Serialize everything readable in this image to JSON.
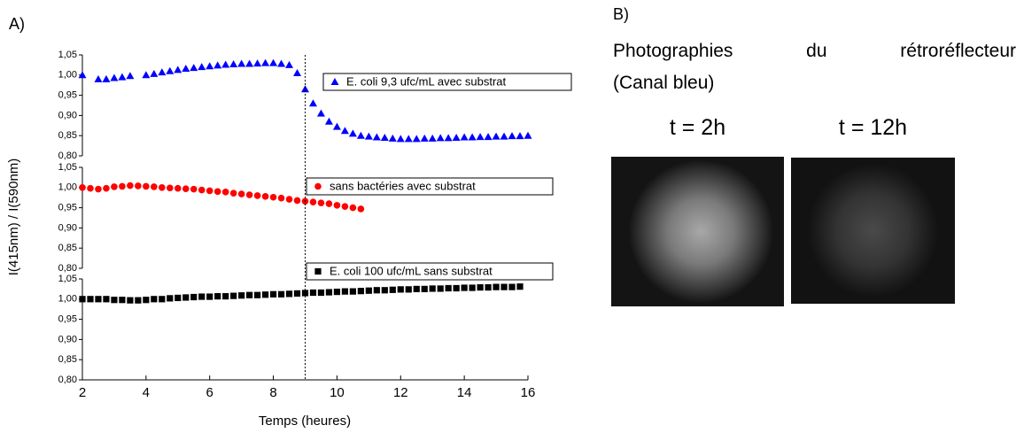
{
  "chart_data": {
    "type": "scatter",
    "label": "A)",
    "xlabel": "Temps (heures)",
    "ylabel": "I(415nm) / I(590nm)",
    "xlim": [
      2,
      16
    ],
    "xticks": [
      2,
      4,
      6,
      8,
      10,
      12,
      14,
      16
    ],
    "ylim": [
      0.8,
      1.05
    ],
    "yticks": [
      {
        "value": 0.8,
        "label": "0,80"
      },
      {
        "value": 0.85,
        "label": "0,85"
      },
      {
        "value": 0.9,
        "label": "0,90"
      },
      {
        "value": 0.95,
        "label": "0,95"
      },
      {
        "value": 1.0,
        "label": "1,00"
      },
      {
        "value": 1.05,
        "label": "1,05"
      }
    ],
    "vline": 9,
    "series": [
      {
        "name": "E. coli 9,3 ufc/mL avec substrat",
        "color": "#0000ff",
        "marker": "triangle",
        "x": [
          2,
          2.5,
          2.75,
          3,
          3.25,
          3.5,
          4,
          4.25,
          4.5,
          4.75,
          5,
          5.25,
          5.5,
          5.75,
          6,
          6.25,
          6.5,
          6.75,
          7,
          7.25,
          7.5,
          7.75,
          8,
          8.25,
          8.5,
          8.75,
          9,
          9.25,
          9.5,
          9.75,
          10,
          10.25,
          10.5,
          10.75,
          11,
          11.25,
          11.5,
          11.75,
          12,
          12.25,
          12.5,
          12.75,
          13,
          13.25,
          13.5,
          13.75,
          14,
          14.25,
          14.5,
          14.75,
          15,
          15.25,
          15.5,
          15.75,
          16
        ],
        "values": [
          1.0,
          0.99,
          0.99,
          0.993,
          0.995,
          0.998,
          1.0,
          1.003,
          1.007,
          1.01,
          1.013,
          1.016,
          1.018,
          1.02,
          1.022,
          1.024,
          1.026,
          1.027,
          1.028,
          1.028,
          1.029,
          1.03,
          1.03,
          1.028,
          1.025,
          1.005,
          0.965,
          0.93,
          0.905,
          0.885,
          0.872,
          0.862,
          0.855,
          0.85,
          0.848,
          0.846,
          0.845,
          0.843,
          0.842,
          0.842,
          0.842,
          0.843,
          0.843,
          0.844,
          0.844,
          0.845,
          0.846,
          0.846,
          0.847,
          0.847,
          0.848,
          0.848,
          0.849,
          0.849,
          0.85
        ]
      },
      {
        "name": "sans bactéries avec substrat",
        "color": "#ff0000",
        "marker": "circle",
        "x": [
          2,
          2.25,
          2.5,
          2.75,
          3,
          3.25,
          3.5,
          3.75,
          4,
          4.25,
          4.5,
          4.75,
          5,
          5.25,
          5.5,
          5.75,
          6,
          6.25,
          6.5,
          6.75,
          7,
          7.25,
          7.5,
          7.75,
          8,
          8.25,
          8.5,
          8.75,
          9,
          9.25,
          9.5,
          9.75,
          10,
          10.25,
          10.5,
          10.75
        ],
        "values": [
          1.0,
          0.998,
          0.996,
          0.998,
          1.002,
          1.003,
          1.005,
          1.004,
          1.003,
          1.002,
          1.0,
          0.999,
          0.998,
          0.997,
          0.996,
          0.994,
          0.992,
          0.99,
          0.989,
          0.986,
          0.984,
          0.982,
          0.98,
          0.978,
          0.976,
          0.974,
          0.971,
          0.968,
          0.966,
          0.964,
          0.962,
          0.96,
          0.956,
          0.953,
          0.95,
          0.947
        ]
      },
      {
        "name": "E. coli 100 ufc/mL sans substrat",
        "color": "#000000",
        "marker": "square",
        "x": [
          2,
          2.25,
          2.5,
          2.75,
          3,
          3.25,
          3.5,
          3.75,
          4,
          4.25,
          4.5,
          4.75,
          5,
          5.25,
          5.5,
          5.75,
          6,
          6.25,
          6.5,
          6.75,
          7,
          7.25,
          7.5,
          7.75,
          8,
          8.25,
          8.5,
          8.75,
          9,
          9.25,
          9.5,
          9.75,
          10,
          10.25,
          10.5,
          10.75,
          11,
          11.25,
          11.5,
          11.75,
          12,
          12.25,
          12.5,
          12.75,
          13,
          13.25,
          13.5,
          13.75,
          14,
          14.25,
          14.5,
          14.75,
          15,
          15.25,
          15.5,
          15.75
        ],
        "values": [
          1.0,
          1.0,
          1.0,
          1.0,
          0.998,
          0.998,
          0.997,
          0.997,
          0.998,
          1.0,
          1.0,
          1.002,
          1.003,
          1.004,
          1.005,
          1.006,
          1.006,
          1.007,
          1.007,
          1.008,
          1.009,
          1.01,
          1.01,
          1.011,
          1.012,
          1.012,
          1.013,
          1.014,
          1.015,
          1.016,
          1.016,
          1.017,
          1.018,
          1.019,
          1.019,
          1.02,
          1.021,
          1.022,
          1.022,
          1.023,
          1.024,
          1.024,
          1.025,
          1.025,
          1.026,
          1.026,
          1.027,
          1.027,
          1.028,
          1.028,
          1.029,
          1.029,
          1.03,
          1.03,
          1.03,
          1.031
        ]
      }
    ]
  },
  "photos": {
    "label": "B)",
    "caption": [
      "Photographies du rétroréflecteur",
      "(Canal bleu)"
    ],
    "times": [
      "t = 2h",
      "t = 12h"
    ]
  }
}
